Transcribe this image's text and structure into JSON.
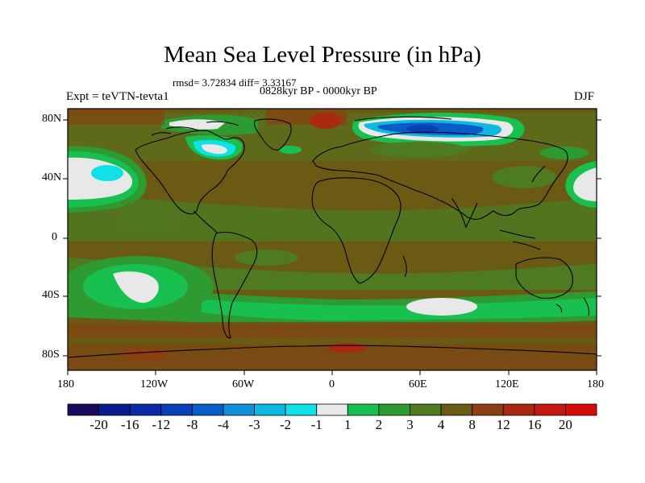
{
  "title": "Mean Sea Level Pressure (in hPa)",
  "stats_line": "rmsd= 3.72834 diff= 3.33167",
  "period_line": "0828kyr BP - 0000kyr BP",
  "experiment_label": "Expt = teVTN-tevta1",
  "season_label": "DJF",
  "lat_ticks": [
    "80N",
    "40N",
    "0",
    "40S",
    "80S"
  ],
  "lon_ticks": [
    "180",
    "120W",
    "60W",
    "0",
    "60E",
    "120E",
    "180"
  ],
  "colorbar": {
    "labels": [
      "-20",
      "-16",
      "-12",
      "-8",
      "-4",
      "-3",
      "-2",
      "-1",
      "1",
      "2",
      "3",
      "4",
      "8",
      "12",
      "16",
      "20"
    ],
    "colors": [
      "#1a0a5c",
      "#0b1a8c",
      "#0a2aa8",
      "#0a3fb8",
      "#0a5cc8",
      "#1090d8",
      "#10b8e0",
      "#10e0e8",
      "#e8e8e8",
      "#18c050",
      "#2e9a32",
      "#4e7a22",
      "#6a5a14",
      "#8a4012",
      "#a82810",
      "#c41810",
      "#d60c08"
    ]
  },
  "chart_data": {
    "type": "heatmap",
    "title": "Mean Sea Level Pressure (in hPa)",
    "subtitle": "0828kyr BP - 0000kyr BP",
    "experiment": "Expt = teVTN-tevta1",
    "season": "DJF",
    "rmsd": 3.72834,
    "diff": 3.33167,
    "x_range": [
      -180,
      180
    ],
    "y_range": [
      -90,
      90
    ],
    "contour_levels": [
      -20,
      -16,
      -12,
      -8,
      -4,
      -3,
      -2,
      -1,
      1,
      2,
      3,
      4,
      8,
      12,
      16,
      20
    ]
  }
}
